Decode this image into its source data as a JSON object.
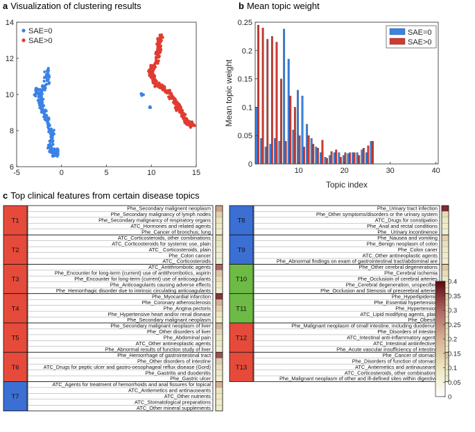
{
  "panels": {
    "a": {
      "letter": "a",
      "title": "Visualization of clustering results"
    },
    "b": {
      "letter": "b",
      "title": "Mean topic weight"
    },
    "c": {
      "letter": "c",
      "title": "Top clinical features from certain disease topics"
    }
  },
  "chart_data": [
    {
      "id": "scatter",
      "type": "scatter",
      "title": "Visualization of clustering results",
      "xlabel": "",
      "ylabel": "",
      "xlim": [
        -5,
        15
      ],
      "ylim": [
        6,
        14
      ],
      "xticks": [
        "-5",
        "0",
        "5",
        "10",
        "15"
      ],
      "yticks": [
        "6",
        "8",
        "10",
        "12",
        "14"
      ],
      "legend": {
        "position": "top-left",
        "entries": [
          "SAE=0",
          "SAE>0"
        ]
      },
      "series": [
        {
          "name": "SAE=0",
          "color": "#3b82e6",
          "clusters": [
            {
              "spine": [
                [
                  -1.6,
                  11.4
                ],
                [
                  -1.7,
                  10.6
                ],
                [
                  -2.5,
                  10.0
                ],
                [
                  -2.1,
                  9.2
                ],
                [
                  -1.5,
                  8.5
                ],
                [
                  -1.0,
                  7.8
                ],
                [
                  -1.3,
                  7.0
                ],
                [
                  -0.8,
                  6.6
                ],
                [
                  -0.3,
                  7.0
                ]
              ],
              "n": 230,
              "spread": 0.35
            },
            {
              "spine": [
                [
                  -3.0,
                  9.9
                ],
                [
                  -2.7,
                  10.3
                ]
              ],
              "n": 18,
              "spread": 0.2
            },
            {
              "spine": [
                [
                  8.9,
                  10.0
                ],
                [
                  9.1,
                  10.0
                ]
              ],
              "n": 8,
              "spread": 0.12
            },
            {
              "spine": [
                [
                  9.8,
                  9.3
                ],
                [
                  9.9,
                  9.3
                ]
              ],
              "n": 4,
              "spread": 0.1
            }
          ]
        },
        {
          "name": "SAE>0",
          "color": "#e03c31",
          "clusters": [
            {
              "spine": [
                [
                  11.0,
                  13.3
                ],
                [
                  10.8,
                  12.5
                ],
                [
                  10.6,
                  11.8
                ],
                [
                  9.9,
                  11.3
                ],
                [
                  10.5,
                  10.6
                ],
                [
                  11.4,
                  10.3
                ],
                [
                  12.3,
                  9.9
                ],
                [
                  13.0,
                  9.3
                ],
                [
                  13.6,
                  8.9
                ],
                [
                  14.0,
                  8.4
                ],
                [
                  14.6,
                  8.3
                ]
              ],
              "n": 340,
              "spread": 0.35
            }
          ]
        }
      ]
    },
    {
      "id": "bars",
      "type": "bar",
      "title": "Mean topic weight",
      "xlabel": "Topic index",
      "ylabel": "Mean topic weight",
      "xlim": [
        0.5,
        40.5
      ],
      "ylim": [
        0,
        0.25
      ],
      "xticks": [
        "10",
        "20",
        "30",
        "40"
      ],
      "yticks": [
        "0",
        "0.05",
        "0.1",
        "0.15",
        "0.2",
        "0.25"
      ],
      "legend": {
        "position": "top-right",
        "entries": [
          "SAE=0",
          "SAE>0"
        ]
      },
      "categories": [
        1,
        2,
        3,
        4,
        5,
        6,
        7,
        8,
        9,
        10,
        11,
        12,
        13,
        14,
        15,
        16,
        17,
        18,
        19,
        20,
        21,
        22,
        23,
        24,
        25,
        26,
        27,
        28,
        29,
        30,
        31,
        32,
        33,
        34,
        35,
        36,
        37,
        38,
        39,
        40
      ],
      "series": [
        {
          "name": "SAE=0",
          "color": "#3b82e6",
          "values": [
            0.1,
            0.045,
            0.03,
            0.035,
            0.045,
            0.04,
            0.238,
            0.185,
            0.06,
            0.13,
            0.12,
            0.07,
            0.045,
            0.03,
            0.02,
            0.012,
            0.015,
            0.02,
            0.02,
            0.015,
            0.018,
            0.02,
            0.02,
            0.025,
            0.02,
            0.04,
            0,
            0,
            0,
            0,
            0,
            0,
            0,
            0,
            0,
            0,
            0,
            0,
            0,
            0
          ]
        },
        {
          "name": "SAE>0",
          "color": "#d13a30",
          "values": [
            0.245,
            0.24,
            0.22,
            0.225,
            0.215,
            0.15,
            0.04,
            0.12,
            0.1,
            0.05,
            0.03,
            0.05,
            0.035,
            0.028,
            0.042,
            0.01,
            0.022,
            0.025,
            0.012,
            0.02,
            0.02,
            0.02,
            0.015,
            0.028,
            0.032,
            0.04,
            0,
            0,
            0,
            0,
            0,
            0,
            0,
            0,
            0,
            0,
            0,
            0,
            0,
            0
          ]
        }
      ]
    },
    {
      "id": "heatmap",
      "type": "heatmap",
      "title": "Top clinical features from certain disease topics",
      "colorbar": {
        "min": 0,
        "max": 0.4,
        "ticks": [
          "0",
          "0.05",
          "0.1",
          "0.15",
          "0.2",
          "0.25",
          "0.3",
          "0.35",
          "0.4"
        ]
      },
      "groups_left": [
        {
          "topic": "T1",
          "color": "#e64a3b",
          "features": [
            {
              "label": "Phe_Secondary malignent neoplasm",
              "value": 0.22
            },
            {
              "label": "Phe_Secondary malignancy of lymph nodes",
              "value": 0.14
            },
            {
              "label": "Phe_Secondary malignancy of respiratory organs",
              "value": 0.1
            },
            {
              "label": "ATC_Hormones and related agents",
              "value": 0.09
            },
            {
              "label": "Phe_Cancer of bronchus; lung",
              "value": 0.08
            }
          ]
        },
        {
          "topic": "T2",
          "color": "#e64a3b",
          "features": [
            {
              "label": "ATC_Corticosteroids, other combinations",
              "value": 0.12
            },
            {
              "label": "ATC_Corticosteroids for systemic use, plain",
              "value": 0.1
            },
            {
              "label": "ATC_ Corticosteroids, plain",
              "value": 0.08
            },
            {
              "label": "Phe_Colon cancer",
              "value": 0.07
            },
            {
              "label": "ATC_ Corticosteroids",
              "value": 0.07
            }
          ]
        },
        {
          "topic": "T3",
          "color": "#e64a3b",
          "features": [
            {
              "label": "ATC_Antithrombotic agents",
              "value": 0.3
            },
            {
              "label": "Phe_Encounter for long-term (current) use of antithrombotics, aspirin",
              "value": 0.16
            },
            {
              "label": "Phe_Encounter for long-term (current) use of anticoagulants",
              "value": 0.12
            },
            {
              "label": "Phe_Anticoagulants causing adverse effects",
              "value": 0.09
            },
            {
              "label": "Phe_Hemorrhagic disorder due to intrinsic circulating anticoagulants",
              "value": 0.07
            }
          ]
        },
        {
          "topic": "T4",
          "color": "#e64a3b",
          "features": [
            {
              "label": "Phe_Myocardial infarction",
              "value": 0.35
            },
            {
              "label": "Phe_Coronary atherosclerosis",
              "value": 0.2
            },
            {
              "label": "Phe_Angina pectoris",
              "value": 0.14
            },
            {
              "label": "Phe_Hypertensive heart and/or renal disease",
              "value": 0.1
            },
            {
              "label": "Phe_Secondary malignant neoplasm",
              "value": 0.07
            }
          ]
        },
        {
          "topic": "T5",
          "color": "#e64a3b",
          "features": [
            {
              "label": "Phe_Secondary malignant neoplasm of liver",
              "value": 0.2
            },
            {
              "label": "Phe_Other disorders of liver",
              "value": 0.13
            },
            {
              "label": "Phe_Abdominal pain",
              "value": 0.1
            },
            {
              "label": "ATC_Other antineoplastic agents",
              "value": 0.09
            },
            {
              "label": "Phe_Abnormal results of function study of liver",
              "value": 0.07
            }
          ]
        },
        {
          "topic": "T6",
          "color": "#e64a3b",
          "features": [
            {
              "label": "Phe_Hemorrhage of gastrointestinal tract",
              "value": 0.32
            },
            {
              "label": "Phe_Other disorders of intestine",
              "value": 0.15
            },
            {
              "label": "ATC_Drugs for peptic ulcer and gastro-oesophageal reflux disease (Gord)",
              "value": 0.11
            },
            {
              "label": "Phe_Gastritis and duodenitis",
              "value": 0.09
            },
            {
              "label": "Phe_Gastric ulcer",
              "value": 0.07
            }
          ]
        },
        {
          "topic": "T7",
          "color": "#3b6fd4",
          "features": [
            {
              "label": "ATC_Agents for treatment of hemorrhoids and anal fissures for topical",
              "value": 0.2
            },
            {
              "label": "ATC_Antiemetics and antinauseants",
              "value": 0.1
            },
            {
              "label": "ATC_Other nutrients",
              "value": 0.09
            },
            {
              "label": "ATC_Stomatological preparations",
              "value": 0.08
            },
            {
              "label": "ATC_Other mineral supplements",
              "value": 0.08
            }
          ]
        }
      ],
      "groups_right": [
        {
          "topic": "T8",
          "color": "#3b6fd4",
          "features": [
            {
              "label": "Phe_Urinary tract infection",
              "value": 0.36
            },
            {
              "label": "Phe_Other symptoms/disorders or the urinary system",
              "value": 0.12
            },
            {
              "label": "ATC_Drugs for constipation",
              "value": 0.09
            },
            {
              "label": "Phe_Anal and rectal conditions",
              "value": 0.08
            },
            {
              "label": "Phe_ Urinary incontinence",
              "value": 0.07
            }
          ]
        },
        {
          "topic": "T9",
          "color": "#3b6fd4",
          "features": [
            {
              "label": "Phe_Nausea and vomiting",
              "value": 0.14
            },
            {
              "label": "Phe_Benign neoplasm of colon",
              "value": 0.11
            },
            {
              "label": "Phe_Colon caner",
              "value": 0.09
            },
            {
              "label": "ATC_Other antineoplastic agents",
              "value": 0.08
            },
            {
              "label": "Phe_Abnormal findings on exam of gastrointestinal tract/abdominal are",
              "value": 0.07
            }
          ]
        },
        {
          "topic": "T10",
          "color": "#6dbb45",
          "features": [
            {
              "label": "Phe_Other cerebral degenerations",
              "value": 0.16
            },
            {
              "label": "Phe_Cerebral ischemia",
              "value": 0.12
            },
            {
              "label": "Phe_Occlusioin of cerebral arteries",
              "value": 0.09
            },
            {
              "label": "Phe_Cerebral degeneration, unspecified",
              "value": 0.08
            },
            {
              "label": "Phe_Occlusion and Stenosis of precerebral arteries",
              "value": 0.07
            }
          ]
        },
        {
          "topic": "T11",
          "color": "#6dbb45",
          "features": [
            {
              "label": "Phe_Hyperlipidemia",
              "value": 0.14
            },
            {
              "label": "Phe_Essential hypertension",
              "value": 0.12
            },
            {
              "label": "Phe_Hypertension",
              "value": 0.1
            },
            {
              "label": "ATC_Lipid modifying agents, plain",
              "value": 0.09
            },
            {
              "label": "Phe_Obesity",
              "value": 0.07
            }
          ]
        },
        {
          "topic": "T12",
          "color": "#e64a3b",
          "features": [
            {
              "label": "Phe_Malignant neoplasm of small intestine, including duodenum",
              "value": 0.12
            },
            {
              "label": "Phe_Disorders of intestine",
              "value": 0.1
            },
            {
              "label": "ATC_Intestinal anti-inflammatory agents",
              "value": 0.09
            },
            {
              "label": "ATC_Intestinal antiinfectives",
              "value": 0.08
            },
            {
              "label": "Phe_Acute vascular insufficiency of intestine",
              "value": 0.07
            }
          ]
        },
        {
          "topic": "T13",
          "color": "#e64a3b",
          "features": [
            {
              "label": "Phe_Cancer of stomach",
              "value": 0.16
            },
            {
              "label": "Phe_Disorders of function of stomach",
              "value": 0.12
            },
            {
              "label": "ATC_Antiemetics and antinauseants",
              "value": 0.1
            },
            {
              "label": "ATC_Corticosteroids, other combinations",
              "value": 0.08
            },
            {
              "label": "Phe_Malignant neoplasm of other and ill-defined sites within digestive",
              "value": 0.07
            }
          ]
        }
      ]
    }
  ]
}
